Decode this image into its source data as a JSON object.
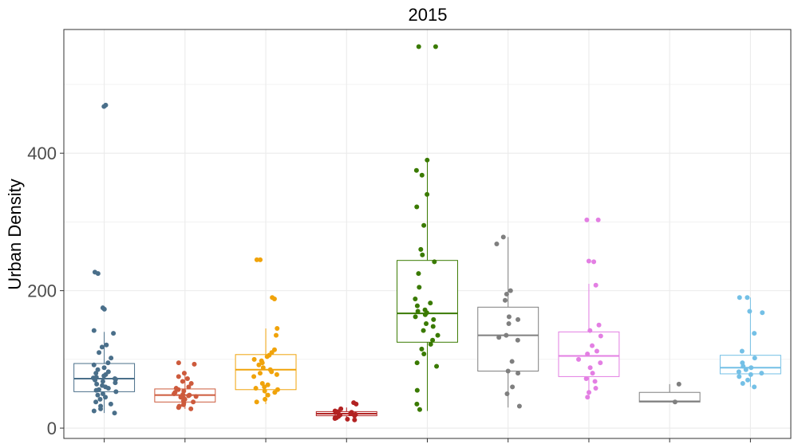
{
  "chart_data": {
    "type": "box",
    "title": "2015",
    "xlabel": "",
    "ylabel": "Urban Density",
    "ylim": [
      -15,
      580
    ],
    "y_ticks": [
      0,
      200,
      400
    ],
    "grid": true,
    "legend": "none",
    "groups": [
      {
        "color": "#4a6f8a",
        "box": {
          "q1": 53,
          "median": 72,
          "q3": 94,
          "lower": 22,
          "upper": 140
        },
        "points": [
          468,
          470,
          227,
          225,
          175,
          173,
          142,
          138,
          121,
          118,
          110,
          102,
          95,
          92,
          88,
          85,
          82,
          80,
          78,
          76,
          74,
          73,
          72,
          71,
          70,
          68,
          66,
          64,
          62,
          60,
          58,
          56,
          55,
          53,
          50,
          48,
          45,
          42,
          38,
          35,
          32,
          28,
          25,
          22
        ]
      },
      {
        "color": "#cd5a3c",
        "box": {
          "q1": 38,
          "median": 48,
          "q3": 57,
          "lower": 28,
          "upper": 80
        },
        "points": [
          95,
          93,
          80,
          75,
          72,
          68,
          65,
          60,
          58,
          56,
          54,
          52,
          50,
          49,
          48,
          47,
          46,
          45,
          44,
          42,
          40,
          38,
          36,
          34,
          32,
          30,
          28
        ]
      },
      {
        "color": "#f0a30a",
        "box": {
          "q1": 56,
          "median": 85,
          "q3": 107,
          "lower": 35,
          "upper": 145
        },
        "points": [
          245,
          245,
          190,
          188,
          145,
          135,
          114,
          110,
          106,
          104,
          100,
          98,
          95,
          92,
          88,
          85,
          82,
          80,
          78,
          75,
          65,
          63,
          60,
          58,
          56,
          54,
          52,
          48,
          42,
          38
        ]
      },
      {
        "color": "#b22222",
        "box": {
          "q1": 18,
          "median": 21,
          "q3": 24,
          "lower": 14,
          "upper": 30
        },
        "points": [
          37,
          35,
          28,
          25,
          24,
          23,
          22,
          21,
          20,
          19,
          18,
          17,
          16,
          15,
          14,
          13,
          12
        ]
      },
      {
        "color": "#3a7a00",
        "box": {
          "q1": 125,
          "median": 167,
          "q3": 244,
          "lower": 25,
          "upper": 390
        },
        "points": [
          555,
          555,
          390,
          375,
          368,
          340,
          322,
          295,
          260,
          252,
          242,
          225,
          205,
          188,
          182,
          178,
          172,
          170,
          168,
          165,
          162,
          158,
          152,
          148,
          142,
          135,
          128,
          122,
          115,
          108,
          95,
          90,
          55,
          35,
          27
        ]
      },
      {
        "color": "#7f7f7f",
        "box": {
          "q1": 83,
          "median": 135,
          "q3": 176,
          "lower": 30,
          "upper": 278
        },
        "points": [
          278,
          268,
          200,
          195,
          186,
          162,
          158,
          152,
          135,
          132,
          128,
          97,
          83,
          80,
          60,
          50,
          32
        ]
      },
      {
        "color": "#e37fe3",
        "box": {
          "q1": 75,
          "median": 105,
          "q3": 140,
          "lower": 45,
          "upper": 210
        },
        "points": [
          303,
          303,
          243,
          242,
          208,
          150,
          142,
          134,
          120,
          112,
          108,
          100,
          95,
          88,
          80,
          72,
          68,
          58,
          52,
          45
        ]
      },
      {
        "color": "#7f7f7f",
        "box": {
          "q1": 38,
          "median": 39,
          "q3": 52,
          "lower": 38,
          "upper": 64
        },
        "points": [
          64,
          38
        ]
      },
      {
        "color": "#74c0e6",
        "box": {
          "q1": 79,
          "median": 88,
          "q3": 106,
          "lower": 60,
          "upper": 190
        },
        "points": [
          190,
          190,
          170,
          168,
          138,
          112,
          102,
          95,
          90,
          88,
          85,
          82,
          80,
          78,
          75,
          70,
          65,
          60
        ]
      }
    ]
  }
}
